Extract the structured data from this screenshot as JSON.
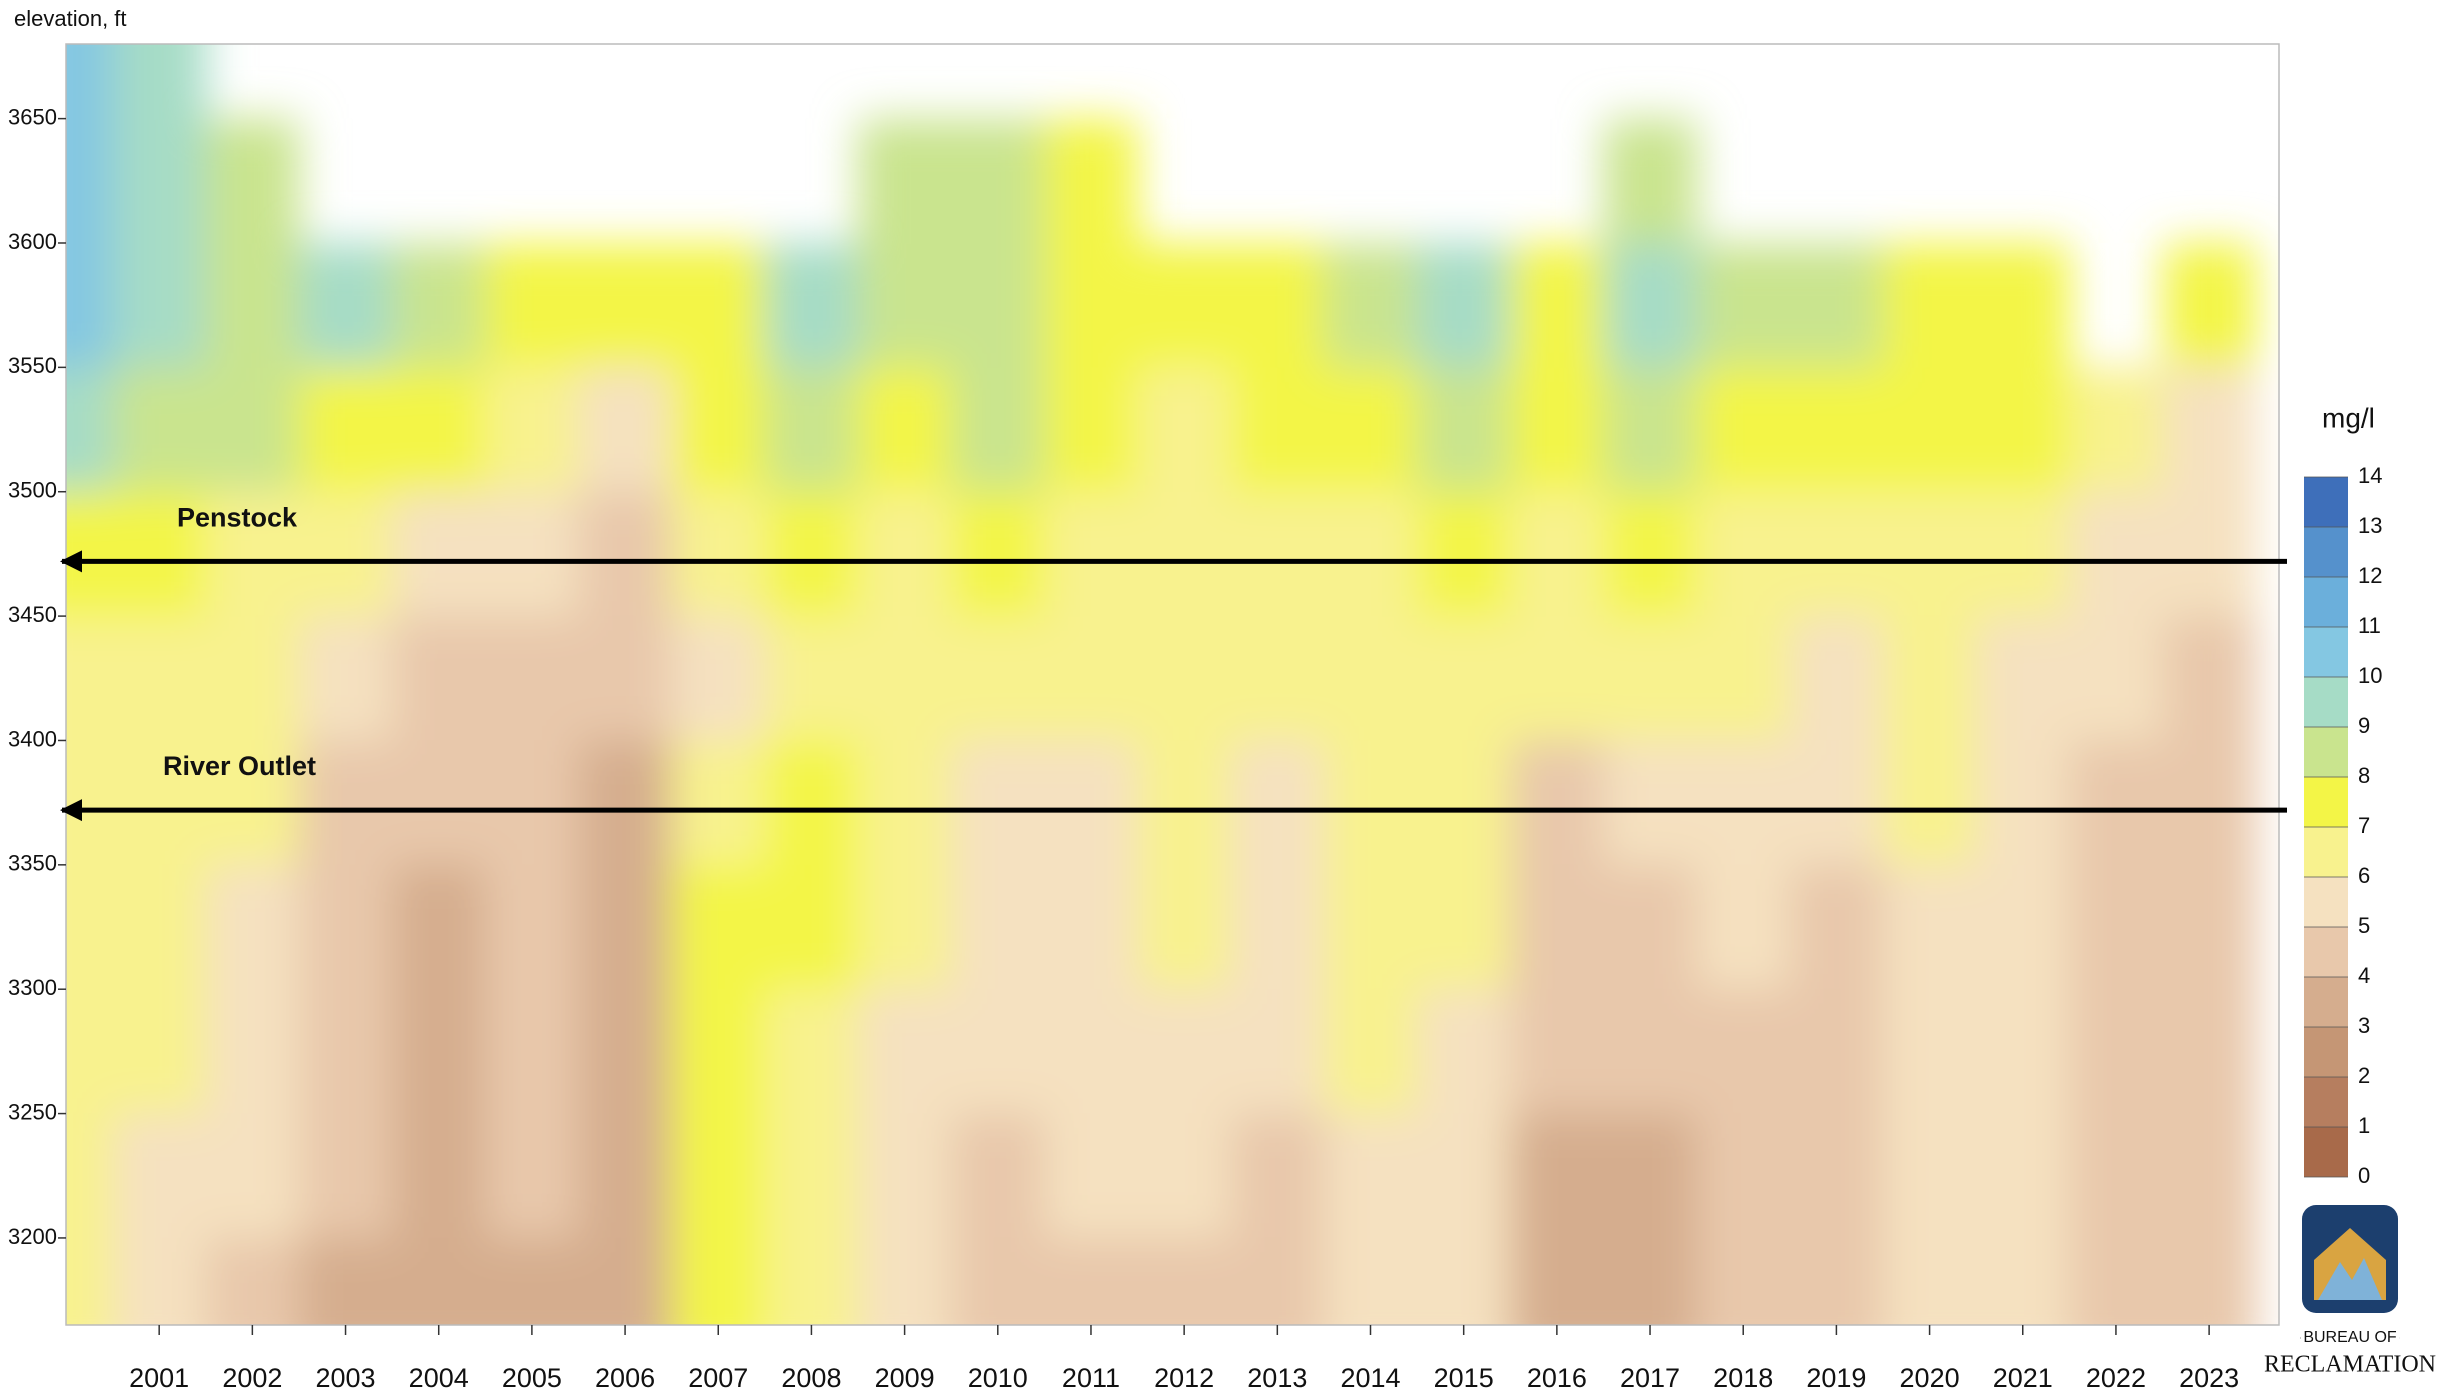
{
  "chart_data": {
    "type": "heatmap",
    "y_label": "elevation, ft",
    "x": [
      2000,
      2001,
      2002,
      2003,
      2004,
      2005,
      2006,
      2007,
      2008,
      2009,
      2010,
      2011,
      2012,
      2013,
      2014,
      2015,
      2016,
      2017,
      2018,
      2019,
      2020,
      2021,
      2022,
      2023
    ],
    "y": [
      3675,
      3625,
      3575,
      3525,
      3475,
      3425,
      3375,
      3325,
      3275,
      3225,
      3175
    ],
    "z": [
      [
        10,
        9.5,
        null,
        null,
        null,
        null,
        null,
        null,
        null,
        null,
        null,
        null,
        null,
        null,
        null,
        null,
        null,
        null,
        null,
        null,
        null,
        null,
        null,
        null
      ],
      [
        10,
        9,
        8.5,
        null,
        null,
        null,
        null,
        null,
        null,
        8,
        8,
        7,
        null,
        null,
        null,
        null,
        null,
        8,
        null,
        null,
        null,
        null,
        null,
        null
      ],
      [
        10,
        9,
        8,
        9,
        8,
        7,
        7,
        7.5,
        9,
        8.5,
        8,
        7,
        7,
        7.5,
        8,
        9,
        7,
        9,
        8,
        8,
        7.5,
        7,
        null,
        7
      ],
      [
        9,
        8,
        8,
        7,
        7,
        6,
        5.5,
        7,
        8,
        7,
        8,
        7,
        6.5,
        7,
        7,
        8,
        7,
        8,
        7,
        7,
        7,
        7,
        6,
        5
      ],
      [
        7,
        7,
        6.5,
        6,
        5,
        5,
        4.5,
        6,
        7,
        6,
        7,
        6,
        6,
        6,
        6.5,
        7,
        6.5,
        7.5,
        6.5,
        6.5,
        6.5,
        6.5,
        5.5,
        5
      ],
      [
        6.5,
        6.5,
        6,
        5,
        4,
        4.5,
        4,
        5.5,
        6.5,
        6,
        6,
        6,
        6,
        6,
        6,
        6.5,
        6,
        6,
        6,
        5.5,
        6,
        5.5,
        5,
        4.5
      ],
      [
        6.5,
        6,
        6,
        4.5,
        4,
        4,
        3.5,
        6,
        7,
        6,
        5,
        5.5,
        6,
        5.5,
        6,
        6,
        4.5,
        5,
        5.5,
        5,
        6,
        5,
        4.5,
        4.5
      ],
      [
        6.5,
        6,
        5.5,
        4,
        3.5,
        4,
        3.5,
        7,
        7,
        6,
        5,
        5,
        6,
        5,
        6,
        6,
        4,
        4.5,
        5,
        4.5,
        5.5,
        5,
        4.5,
        4
      ],
      [
        6,
        6,
        5,
        4,
        3.5,
        4,
        3.5,
        7.5,
        6.5,
        5.5,
        5,
        5,
        5.5,
        5,
        6,
        5.5,
        4,
        4.5,
        4.5,
        4.5,
        5.5,
        5,
        4.5,
        4
      ],
      [
        6,
        5.5,
        5,
        4,
        3.5,
        4,
        3.5,
        7,
        6.5,
        5,
        4,
        5,
        5,
        4.5,
        5.5,
        5,
        3.5,
        3.5,
        4,
        4.5,
        5.5,
        5,
        4.5,
        4
      ],
      [
        6,
        5.5,
        4.5,
        3.5,
        3,
        3.5,
        3,
        7,
        6,
        5,
        4,
        4.5,
        4.5,
        4,
        5.5,
        5,
        3,
        3.5,
        4,
        4.5,
        5.5,
        5,
        4,
        4
      ]
    ],
    "xlim": [
      2000,
      2023.75
    ],
    "xticks": [
      2001,
      2002,
      2003,
      2004,
      2005,
      2006,
      2007,
      2008,
      2009,
      2010,
      2011,
      2012,
      2013,
      2014,
      2015,
      2016,
      2017,
      2018,
      2019,
      2020,
      2021,
      2022,
      2023
    ],
    "ylim": [
      3165,
      3680
    ],
    "yticks": [
      3200,
      3250,
      3300,
      3350,
      3400,
      3450,
      3500,
      3550,
      3600,
      3650
    ],
    "colorbar": {
      "label": "mg/l",
      "ticks": [
        0,
        1,
        2,
        3,
        4,
        5,
        6,
        7,
        8,
        9,
        10,
        11,
        12,
        13,
        14
      ],
      "colors": [
        "#a86a4a",
        "#b67e5f",
        "#c59675",
        "#d5ad8e",
        "#e8c8ab",
        "#f5e1c0",
        "#f8f28e",
        "#f3f547",
        "#c9e48e",
        "#a6dcc6",
        "#84c7e2",
        "#6bafdb",
        "#5591cc",
        "#3e6fba"
      ]
    },
    "annotations": [
      {
        "text": "Penstock",
        "y": 3472
      },
      {
        "text": "River Outlet",
        "y": 3372
      }
    ],
    "logo": {
      "line1": "BUREAU OF",
      "line2": "RECLAMATION"
    }
  }
}
